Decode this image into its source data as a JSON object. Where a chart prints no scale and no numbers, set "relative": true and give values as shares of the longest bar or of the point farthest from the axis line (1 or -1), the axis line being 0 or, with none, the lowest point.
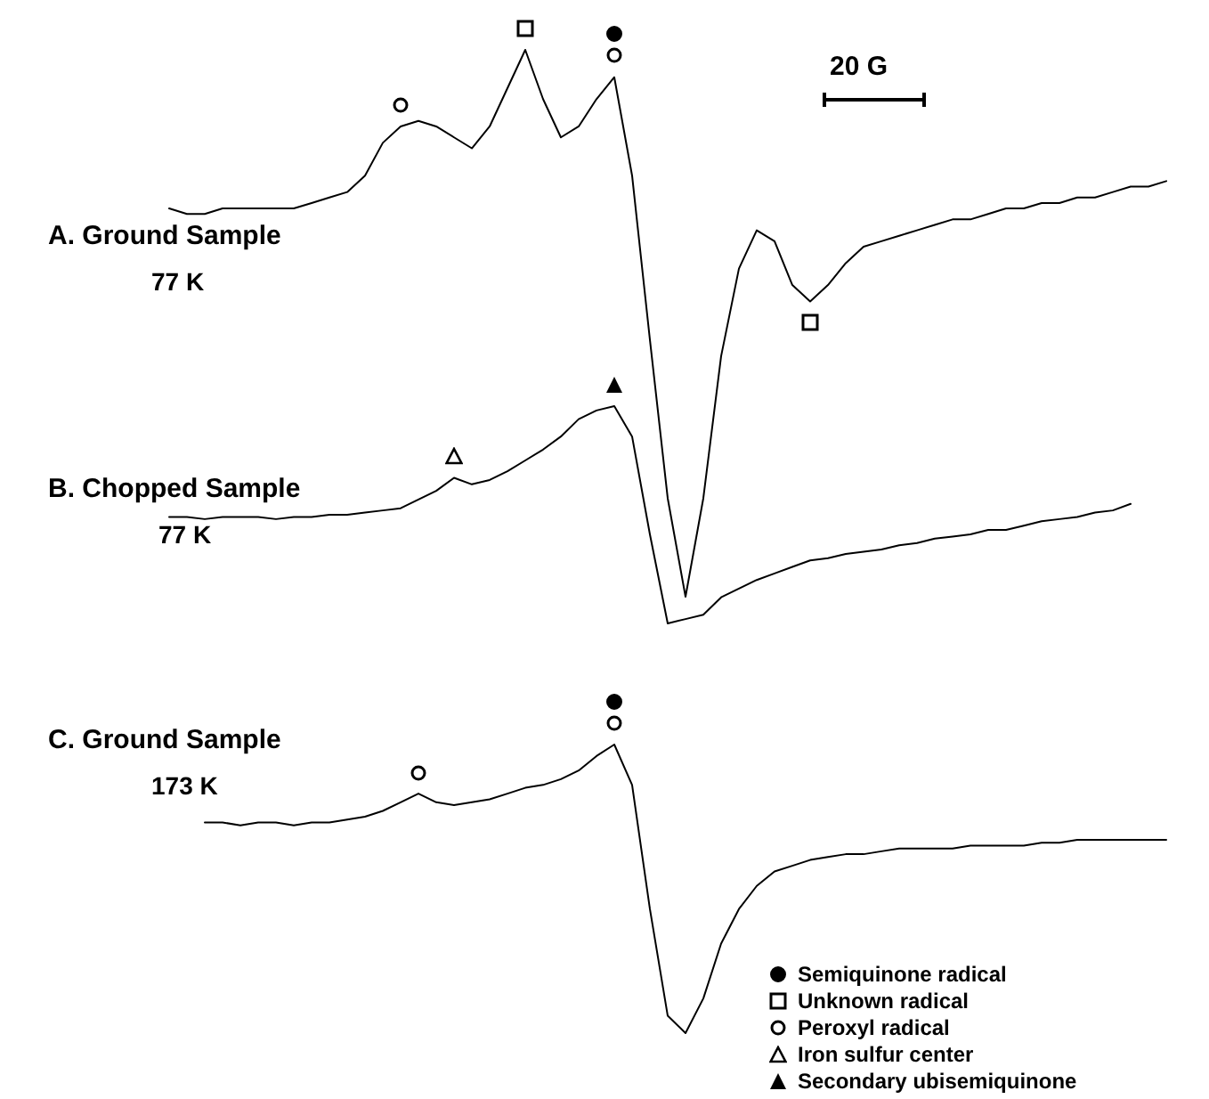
{
  "chart_data": [
    {
      "type": "line",
      "relative": true,
      "title": "A. Ground Sample",
      "subtitle": "77 K",
      "annotations": [
        "20 G"
      ],
      "categories": [
        null,
        null,
        null,
        null,
        null,
        null,
        null,
        null,
        null,
        null,
        null,
        null,
        null,
        null,
        null,
        null,
        null,
        null,
        null,
        null,
        null,
        null,
        null,
        null,
        null,
        null,
        null,
        null,
        null,
        null,
        null,
        null,
        null,
        null,
        null,
        null,
        null,
        null,
        null,
        null,
        null,
        null,
        null,
        null,
        null,
        null,
        null,
        null,
        null,
        null,
        null,
        null,
        null,
        null,
        null,
        null,
        null
      ],
      "series": [
        {
          "color": "#000000",
          "values": [
            0.71,
            0.7,
            0.7,
            0.71,
            0.71,
            0.71,
            0.71,
            0.71,
            0.72,
            0.73,
            0.74,
            0.77,
            0.83,
            0.86,
            0.87,
            0.86,
            0.84,
            0.82,
            0.86,
            0.93,
            1,
            0.91,
            0.84,
            0.86,
            0.91,
            0.95,
            0.77,
            0.47,
            0.18,
            0,
            0.18,
            0.44,
            0.6,
            0.67,
            0.65,
            0.57,
            0.54,
            0.57,
            0.61,
            0.64,
            0.65,
            0.66,
            0.67,
            0.68,
            0.69,
            0.69,
            0.7,
            0.71,
            0.71,
            0.72,
            0.72,
            0.73,
            0.73,
            0.74,
            0.75,
            0.75,
            0.76
          ]
        }
      ]
    },
    {
      "type": "line",
      "relative": true,
      "title": "B. Chopped Sample",
      "subtitle": "77 K",
      "categories": [
        null,
        null,
        null,
        null,
        null,
        null,
        null,
        null,
        null,
        null,
        null,
        null,
        null,
        null,
        null,
        null,
        null,
        null,
        null,
        null,
        null,
        null,
        null,
        null,
        null,
        null,
        null,
        null,
        null,
        null,
        null,
        null,
        null,
        null,
        null,
        null,
        null,
        null,
        null,
        null,
        null,
        null,
        null,
        null,
        null,
        null,
        null,
        null,
        null,
        null,
        null,
        null,
        null,
        null,
        null
      ],
      "series": [
        {
          "color": "#000000",
          "values": [
            0.49,
            0.49,
            0.48,
            0.49,
            0.49,
            0.49,
            0.48,
            0.49,
            0.49,
            0.5,
            0.5,
            0.51,
            0.52,
            0.53,
            0.57,
            0.61,
            0.67,
            0.64,
            0.66,
            0.7,
            0.75,
            0.8,
            0.86,
            0.94,
            0.98,
            1,
            0.86,
            0.41,
            0,
            0.02,
            0.04,
            0.12,
            0.16,
            0.2,
            0.23,
            0.26,
            0.29,
            0.3,
            0.32,
            0.33,
            0.34,
            0.36,
            0.37,
            0.39,
            0.4,
            0.41,
            0.43,
            0.43,
            0.45,
            0.47,
            0.48,
            0.49,
            0.51,
            0.52,
            0.55
          ]
        }
      ]
    },
    {
      "type": "line",
      "relative": true,
      "title": "C. Ground Sample",
      "subtitle": "173 K",
      "categories": [
        null,
        null,
        null,
        null,
        null,
        null,
        null,
        null,
        null,
        null,
        null,
        null,
        null,
        null,
        null,
        null,
        null,
        null,
        null,
        null,
        null,
        null,
        null,
        null,
        null,
        null,
        null,
        null,
        null,
        null,
        null,
        null,
        null,
        null,
        null,
        null,
        null,
        null,
        null,
        null,
        null,
        null,
        null,
        null,
        null,
        null,
        null,
        null,
        null,
        null,
        null,
        null,
        null,
        null,
        null
      ],
      "series": [
        {
          "color": "#000000",
          "values": [
            0.73,
            0.73,
            0.72,
            0.73,
            0.73,
            0.72,
            0.73,
            0.73,
            0.74,
            0.75,
            0.77,
            0.8,
            0.83,
            0.8,
            0.79,
            0.8,
            0.81,
            0.83,
            0.85,
            0.86,
            0.88,
            0.91,
            0.96,
            1,
            0.86,
            0.43,
            0.06,
            0,
            0.12,
            0.31,
            0.43,
            0.51,
            0.56,
            0.58,
            0.6,
            0.61,
            0.62,
            0.62,
            0.63,
            0.64,
            0.64,
            0.64,
            0.64,
            0.65,
            0.65,
            0.65,
            0.65,
            0.66,
            0.66,
            0.67,
            0.67,
            0.67,
            0.67,
            0.67,
            0.67
          ]
        }
      ]
    },
    {
      "type": "other",
      "annotations": [
        "Semiquinone radical",
        "Unknown radical",
        "Peroxyl radical",
        "Iron sulfur center",
        "Secondary ubisemiquinone"
      ]
    }
  ]
}
